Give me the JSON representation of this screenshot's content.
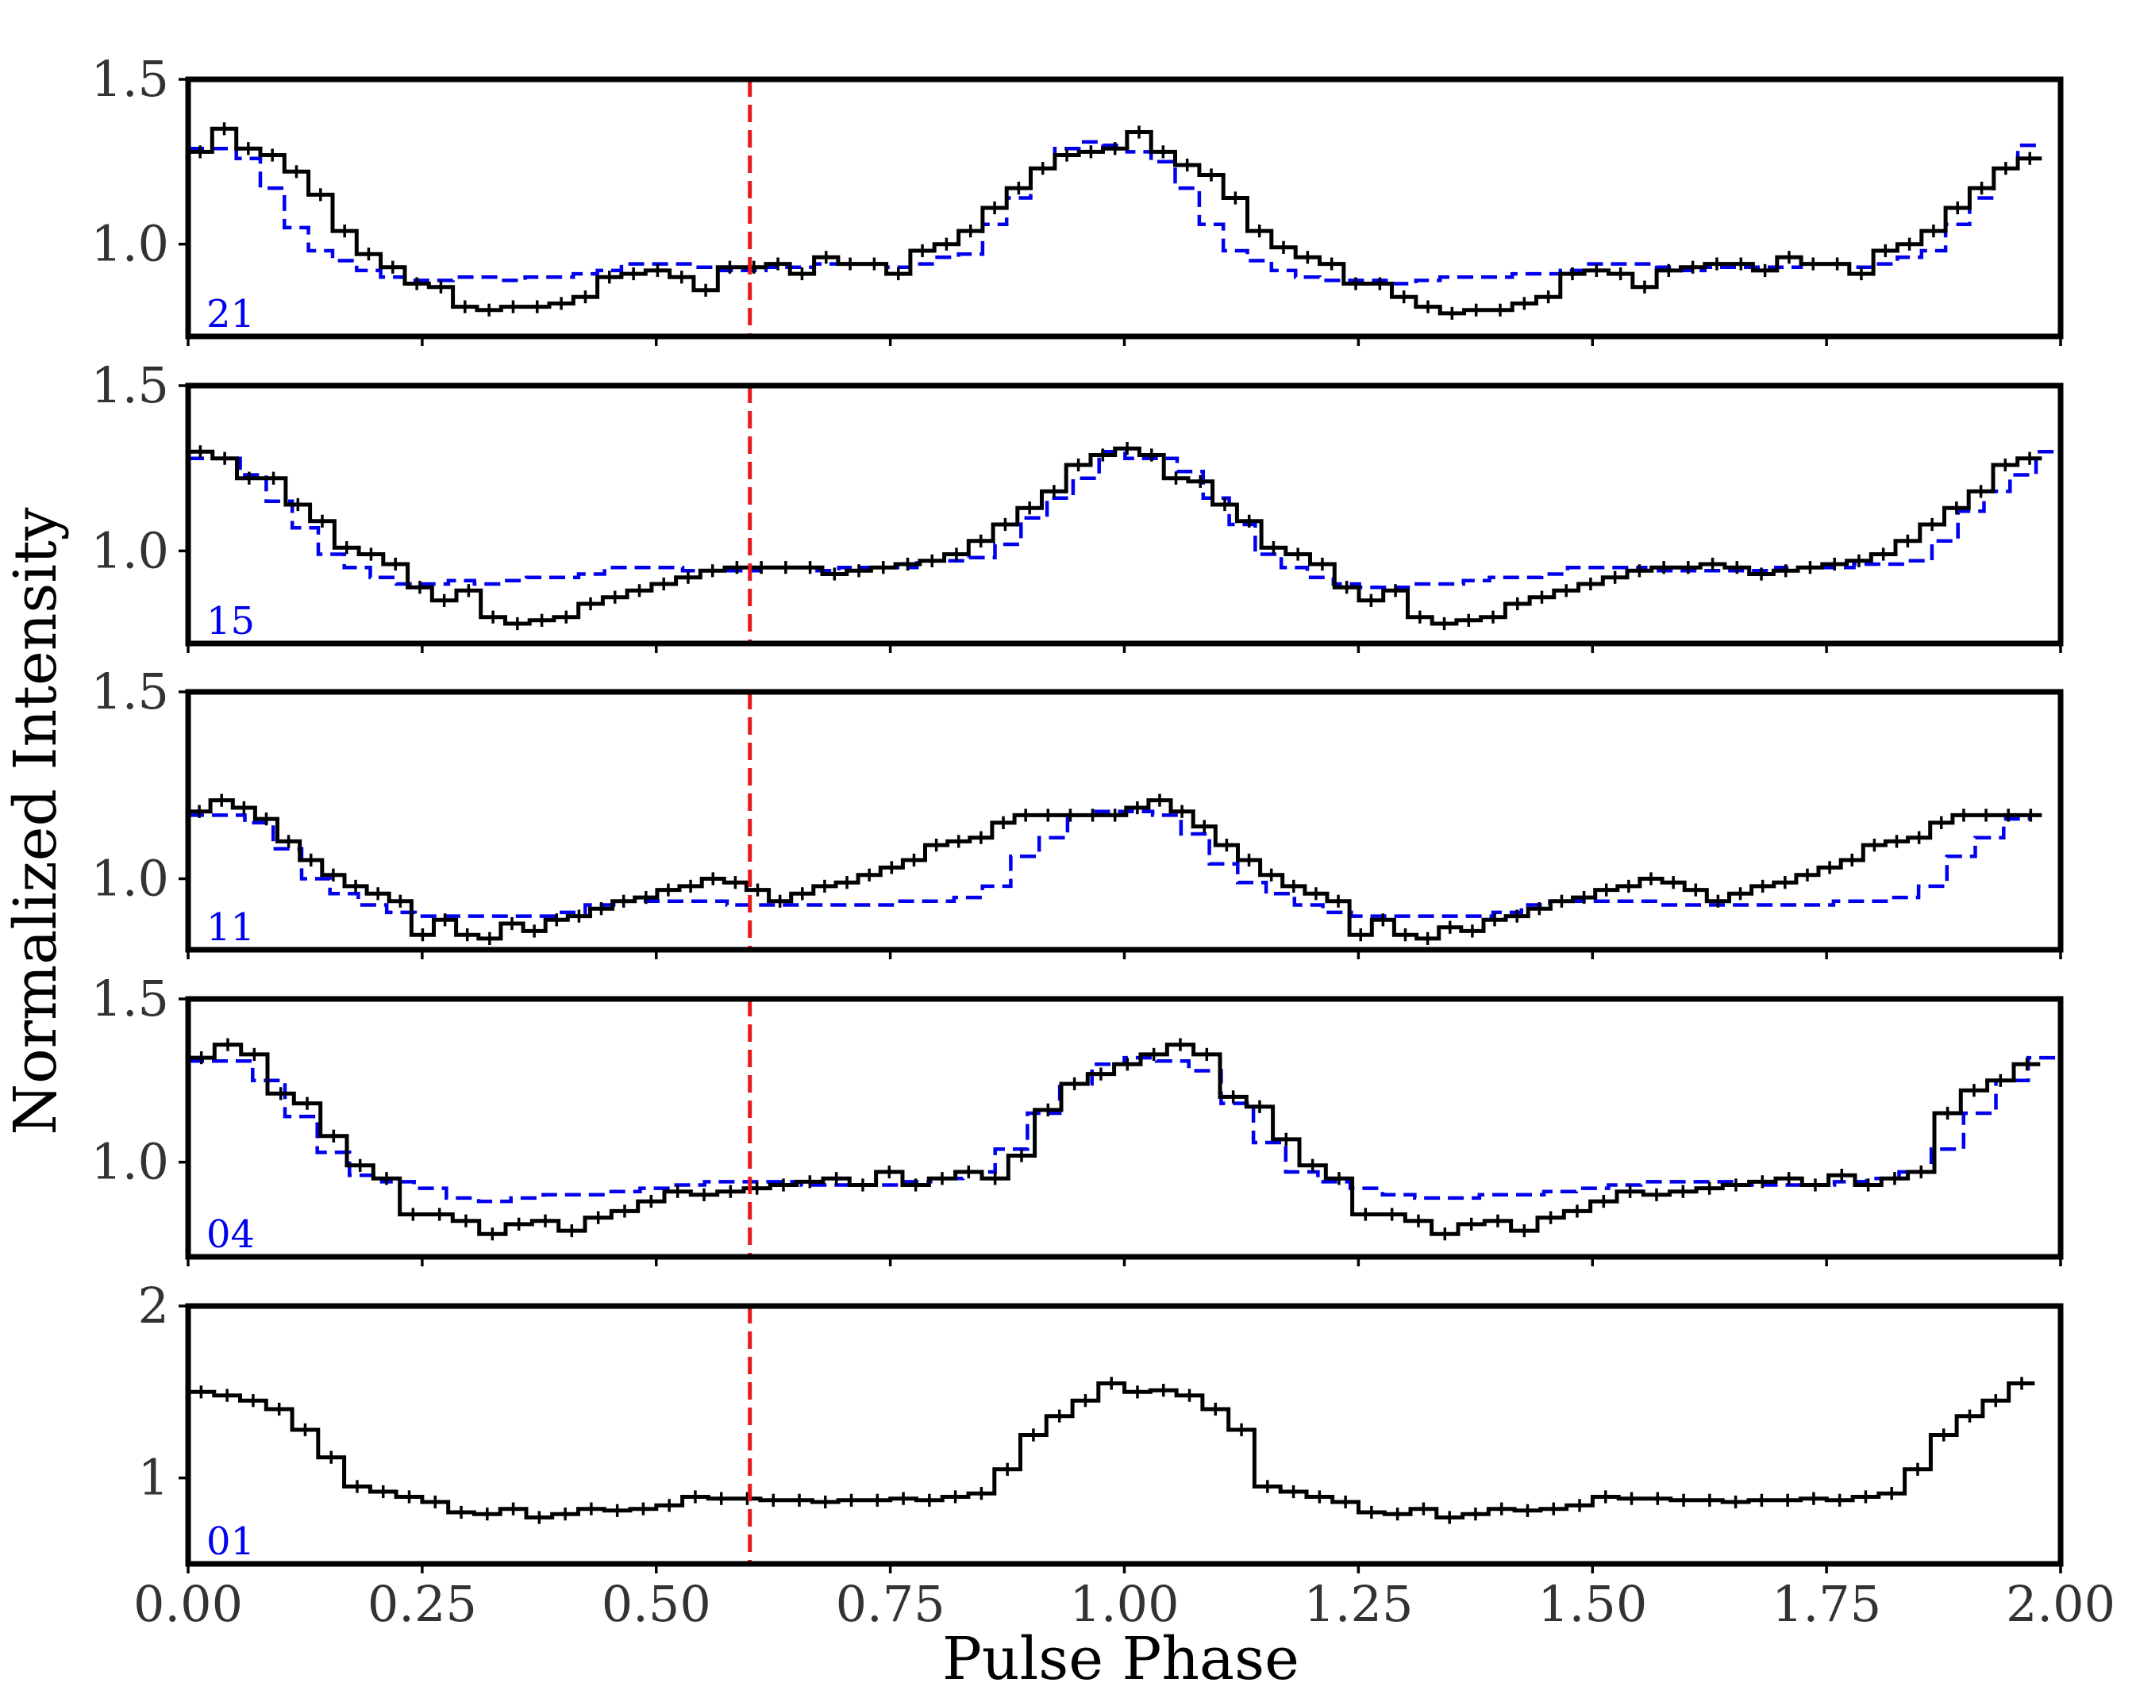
{
  "chart_data": {
    "type": "line",
    "layout": "stacked-panels",
    "xlabel": "Pulse Phase",
    "ylabel": "Normalized Intensity",
    "xlim": [
      0.0,
      2.0
    ],
    "x_ticks": [
      "0.00",
      "0.25",
      "0.50",
      "0.75",
      "1.00",
      "1.25",
      "1.50",
      "1.75",
      "2.00"
    ],
    "x_tick_values": [
      0.0,
      0.25,
      0.5,
      0.75,
      1.0,
      1.25,
      1.5,
      1.75,
      2.0
    ],
    "reference_line": {
      "x": 0.6,
      "style": "dashed",
      "color": "#e8191b"
    },
    "colors": {
      "profile": "#000000",
      "template": "#0000ee",
      "frame": "#000000"
    },
    "panels": [
      {
        "label": "21",
        "ylim": [
          0.72,
          1.5
        ],
        "y_tick_values": [
          1.0,
          1.5
        ],
        "y_ticks": [
          "1.0",
          "1.5"
        ],
        "profile": [
          1.28,
          1.35,
          1.29,
          1.27,
          1.22,
          1.15,
          1.04,
          0.97,
          0.93,
          0.88,
          0.87,
          0.81,
          0.8,
          0.81,
          0.81,
          0.82,
          0.84,
          0.9,
          0.91,
          0.92,
          0.9,
          0.86,
          0.93,
          0.93,
          0.94,
          0.91,
          0.96,
          0.94,
          0.94,
          0.91,
          0.98,
          1.0,
          1.04,
          1.11,
          1.17,
          1.23,
          1.27,
          1.28,
          1.29,
          1.34,
          1.28,
          1.24,
          1.21,
          1.14,
          1.04,
          0.99,
          0.96,
          0.94,
          0.88,
          0.88,
          0.84,
          0.81,
          0.79,
          0.8,
          0.8,
          0.82,
          0.84,
          0.91,
          0.92,
          0.91,
          0.87,
          0.92,
          0.93,
          0.94,
          0.94,
          0.92,
          0.96,
          0.94,
          0.94,
          0.91,
          0.98,
          1.0,
          1.04,
          1.11,
          1.17,
          1.23,
          1.26
        ],
        "template": [
          1.29,
          1.29,
          1.26,
          1.17,
          1.05,
          0.98,
          0.95,
          0.92,
          0.9,
          0.89,
          0.89,
          0.9,
          0.9,
          0.89,
          0.9,
          0.9,
          0.91,
          0.92,
          0.94,
          0.94,
          0.94,
          0.93,
          0.92,
          0.92,
          0.93,
          0.93,
          0.94,
          0.94,
          0.94,
          0.93,
          0.94,
          0.96,
          0.97,
          1.06,
          1.14,
          1.23,
          1.29,
          1.31,
          1.3,
          1.28,
          1.25,
          1.17,
          1.06,
          0.98,
          0.95,
          0.92,
          0.9,
          0.89,
          0.89,
          0.89,
          0.88,
          0.89,
          0.9,
          0.9,
          0.9,
          0.91,
          0.91,
          0.92,
          0.94,
          0.94,
          0.94,
          0.93,
          0.92,
          0.93,
          0.93,
          0.93,
          0.93,
          0.94,
          0.94,
          0.93,
          0.94,
          0.96,
          0.98,
          1.06,
          1.14,
          1.23,
          1.3
        ]
      },
      {
        "label": "15",
        "ylim": [
          0.72,
          1.5
        ],
        "y_tick_values": [
          1.0,
          1.5
        ],
        "y_ticks": [
          "1.0",
          "1.5"
        ],
        "profile": [
          1.3,
          1.28,
          1.22,
          1.22,
          1.14,
          1.09,
          1.01,
          0.99,
          0.96,
          0.89,
          0.85,
          0.88,
          0.8,
          0.78,
          0.79,
          0.8,
          0.84,
          0.86,
          0.88,
          0.9,
          0.92,
          0.94,
          0.95,
          0.95,
          0.95,
          0.95,
          0.93,
          0.94,
          0.95,
          0.96,
          0.97,
          0.99,
          1.03,
          1.08,
          1.13,
          1.18,
          1.26,
          1.29,
          1.31,
          1.29,
          1.22,
          1.21,
          1.14,
          1.09,
          1.01,
          0.99,
          0.96,
          0.89,
          0.85,
          0.88,
          0.8,
          0.78,
          0.79,
          0.8,
          0.84,
          0.86,
          0.88,
          0.9,
          0.92,
          0.94,
          0.95,
          0.95,
          0.96,
          0.95,
          0.93,
          0.94,
          0.95,
          0.96,
          0.97,
          0.99,
          1.03,
          1.08,
          1.13,
          1.18,
          1.26,
          1.28
        ],
        "template": [
          1.28,
          1.28,
          1.23,
          1.15,
          1.07,
          0.99,
          0.95,
          0.92,
          0.9,
          0.9,
          0.91,
          0.9,
          0.91,
          0.92,
          0.92,
          0.93,
          0.95,
          0.95,
          0.95,
          0.94,
          0.94,
          0.94,
          0.95,
          0.95,
          0.94,
          0.95,
          0.95,
          0.95,
          0.97,
          0.97,
          0.98,
          1.02,
          1.1,
          1.16,
          1.22,
          1.3,
          1.28,
          1.28,
          1.24,
          1.16,
          1.08,
          0.99,
          0.95,
          0.92,
          0.9,
          0.89,
          0.89,
          0.9,
          0.9,
          0.91,
          0.92,
          0.92,
          0.93,
          0.95,
          0.95,
          0.95,
          0.94,
          0.94,
          0.94,
          0.94,
          0.94,
          0.95,
          0.95,
          0.95,
          0.96,
          0.96,
          0.97,
          1.03,
          1.12,
          1.18,
          1.23,
          1.3
        ],
        "template_x_start": 0.0,
        "template_bin_width": 0.0278
      },
      {
        "label": "11",
        "ylim": [
          0.81,
          1.5
        ],
        "y_tick_values": [
          1.0,
          1.5
        ],
        "y_ticks": [
          "1.0",
          "1.5"
        ],
        "profile": [
          1.18,
          1.21,
          1.19,
          1.16,
          1.1,
          1.05,
          1.01,
          0.98,
          0.96,
          0.94,
          0.85,
          0.89,
          0.85,
          0.84,
          0.88,
          0.86,
          0.89,
          0.9,
          0.92,
          0.94,
          0.95,
          0.97,
          0.98,
          1.0,
          0.99,
          0.97,
          0.94,
          0.96,
          0.98,
          0.99,
          1.01,
          1.03,
          1.05,
          1.09,
          1.1,
          1.11,
          1.15,
          1.17,
          1.17,
          1.17,
          1.17,
          1.17,
          1.19,
          1.21,
          1.18,
          1.14,
          1.09,
          1.05,
          1.01,
          0.98,
          0.96,
          0.94,
          0.85,
          0.89,
          0.85,
          0.84,
          0.87,
          0.86,
          0.89,
          0.9,
          0.92,
          0.94,
          0.95,
          0.97,
          0.98,
          1.0,
          0.99,
          0.97,
          0.94,
          0.96,
          0.98,
          0.99,
          1.01,
          1.03,
          1.05,
          1.09,
          1.1,
          1.11,
          1.15,
          1.17,
          1.17,
          1.17,
          1.17
        ],
        "template": [
          1.17,
          1.17,
          1.15,
          1.08,
          1.0,
          0.96,
          0.93,
          0.91,
          0.9,
          0.9,
          0.9,
          0.9,
          0.9,
          0.91,
          0.93,
          0.94,
          0.94,
          0.94,
          0.94,
          0.93,
          0.93,
          0.93,
          0.93,
          0.93,
          0.93,
          0.94,
          0.94,
          0.95,
          0.98,
          1.06,
          1.11,
          1.17,
          1.18,
          1.18,
          1.17,
          1.12,
          1.04,
          0.99,
          0.96,
          0.93,
          0.91,
          0.9,
          0.9,
          0.9,
          0.9,
          0.9,
          0.91,
          0.93,
          0.94,
          0.94,
          0.94,
          0.94,
          0.93,
          0.93,
          0.93,
          0.93,
          0.93,
          0.93,
          0.94,
          0.94,
          0.95,
          0.98,
          1.06,
          1.11,
          1.16
        ],
        "template_x_start": 0.0,
        "template_bin_width": 0.0303
      },
      {
        "label": "04",
        "ylim": [
          0.71,
          1.5
        ],
        "y_tick_values": [
          1.0,
          1.5
        ],
        "y_ticks": [
          "1.0",
          "1.5"
        ],
        "profile": [
          1.32,
          1.36,
          1.33,
          1.21,
          1.18,
          1.08,
          0.99,
          0.95,
          0.84,
          0.84,
          0.82,
          0.78,
          0.81,
          0.82,
          0.79,
          0.83,
          0.85,
          0.88,
          0.91,
          0.9,
          0.91,
          0.92,
          0.93,
          0.94,
          0.95,
          0.93,
          0.97,
          0.93,
          0.95,
          0.97,
          0.95,
          1.02,
          1.16,
          1.24,
          1.27,
          1.3,
          1.33,
          1.36,
          1.33,
          1.2,
          1.17,
          1.07,
          0.99,
          0.95,
          0.84,
          0.84,
          0.82,
          0.78,
          0.81,
          0.82,
          0.79,
          0.83,
          0.85,
          0.88,
          0.91,
          0.9,
          0.91,
          0.92,
          0.93,
          0.94,
          0.95,
          0.93,
          0.96,
          0.93,
          0.95,
          0.97,
          1.15,
          1.22,
          1.25,
          1.3
        ],
        "profile_x_start": 0.0,
        "profile_bin_width": 0.02826,
        "template": [
          1.31,
          1.31,
          1.25,
          1.14,
          1.03,
          0.96,
          0.94,
          0.92,
          0.89,
          0.88,
          0.89,
          0.9,
          0.9,
          0.91,
          0.92,
          0.93,
          0.94,
          0.94,
          0.94,
          0.93,
          0.93,
          0.93,
          0.94,
          0.95,
          0.97,
          1.04,
          1.15,
          1.24,
          1.3,
          1.32,
          1.31,
          1.28,
          1.18,
          1.06,
          0.97,
          0.94,
          0.92,
          0.9,
          0.89,
          0.89,
          0.9,
          0.9,
          0.91,
          0.92,
          0.93,
          0.94,
          0.94,
          0.94,
          0.93,
          0.93,
          0.93,
          0.94,
          0.95,
          0.97,
          1.04,
          1.15,
          1.25,
          1.32
        ],
        "template_x_start": 0.0,
        "template_bin_width": 0.03448
      },
      {
        "label": "01",
        "ylim": [
          0.5,
          2.0
        ],
        "y_tick_values": [
          1,
          2
        ],
        "y_ticks": [
          "1",
          "2"
        ],
        "profile": [
          1.5,
          1.48,
          1.45,
          1.4,
          1.28,
          1.12,
          0.95,
          0.92,
          0.89,
          0.86,
          0.8,
          0.79,
          0.82,
          0.77,
          0.79,
          0.82,
          0.81,
          0.82,
          0.84,
          0.89,
          0.88,
          0.88,
          0.87,
          0.87,
          0.86,
          0.87,
          0.87,
          0.88,
          0.87,
          0.89,
          0.91,
          1.05,
          1.25,
          1.36,
          1.45,
          1.55,
          1.5,
          1.51,
          1.48,
          1.4,
          1.28,
          0.95,
          0.92,
          0.89,
          0.86,
          0.8,
          0.79,
          0.82,
          0.77,
          0.79,
          0.82,
          0.81,
          0.82,
          0.84,
          0.89,
          0.88,
          0.88,
          0.87,
          0.87,
          0.86,
          0.87,
          0.87,
          0.88,
          0.87,
          0.89,
          0.91,
          1.05,
          1.25,
          1.36,
          1.45,
          1.55
        ],
        "profile_x_start": 0.0,
        "profile_bin_width": 0.02778
      }
    ]
  }
}
